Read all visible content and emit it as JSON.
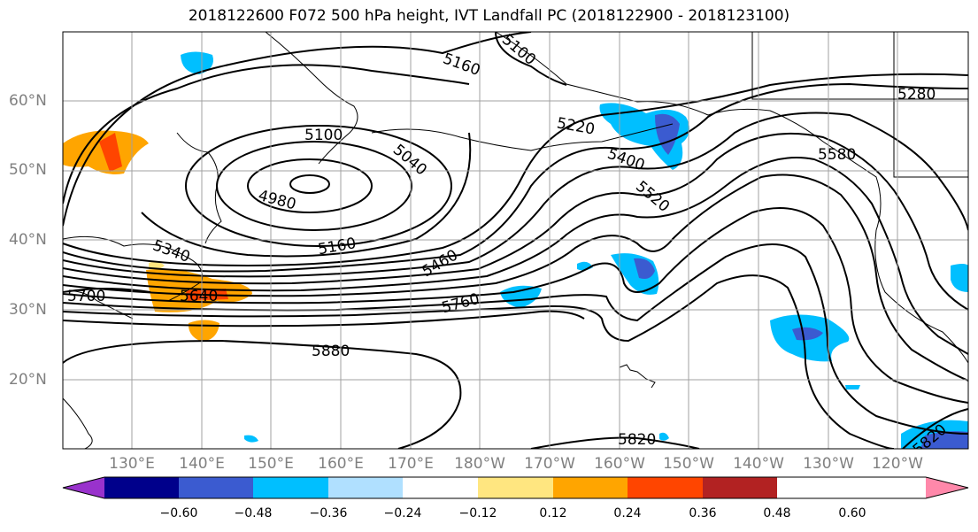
{
  "title": "2018122600 F072 500 hPa height, IVT Landfall PC (2018122900 - 2018123100)",
  "lat_labels": [
    "60°N",
    "50°N",
    "40°N",
    "30°N",
    "20°N"
  ],
  "lon_labels": [
    "130°E",
    "140°E",
    "150°E",
    "160°E",
    "170°E",
    "180°W",
    "170°W",
    "160°W",
    "150°W",
    "140°W",
    "130°W",
    "120°W"
  ],
  "contour_labels": [
    "5160",
    "5100",
    "5100",
    "5040",
    "4980",
    "5220",
    "5400",
    "5520",
    "5280",
    "5580",
    "5160",
    "5340",
    "5460",
    "5640",
    "5700",
    "5760",
    "5880",
    "5820",
    "5820"
  ],
  "colorbar": {
    "ticks": [
      "−0.60",
      "−0.48",
      "−0.36",
      "−0.24",
      "−0.12",
      "0.12",
      "0.24",
      "0.36",
      "0.48",
      "0.60"
    ],
    "colors": [
      "#9932cc",
      "#00008b",
      "#3b5bd0",
      "#00bfff",
      "#b0e0ff",
      "#ffffff",
      "#ffe680",
      "#ffa500",
      "#ff4500",
      "#b22222",
      "#ff88aa"
    ]
  },
  "colors": {
    "land": "#ffffff",
    "ocean": "#ffffff",
    "contour": "#000000",
    "grid": "#a0a0a0"
  }
}
